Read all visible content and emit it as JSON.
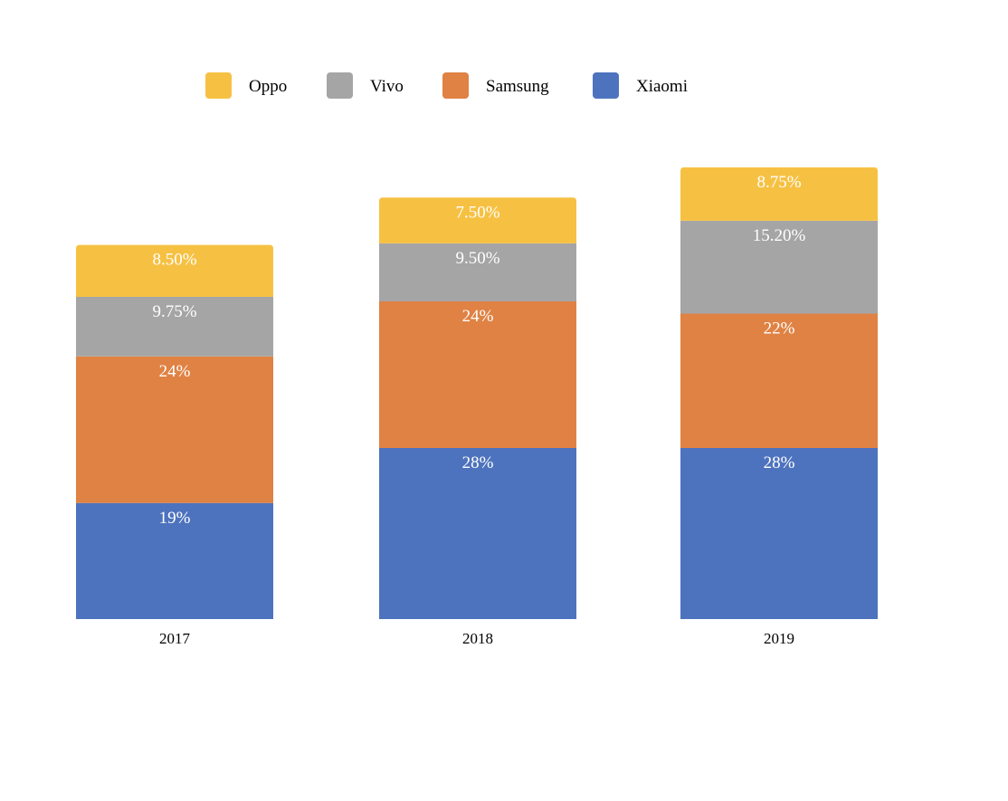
{
  "chart_data": {
    "type": "bar",
    "stacked": true,
    "categories": [
      "2017",
      "2018",
      "2019"
    ],
    "series": [
      {
        "name": "Xiaomi",
        "color": "#4e73be",
        "values": [
          19,
          28,
          28
        ],
        "labels": [
          "19%",
          "28%",
          "28%"
        ]
      },
      {
        "name": "Samsung",
        "color": "#df8244",
        "values": [
          24,
          24,
          22
        ],
        "labels": [
          "24%",
          "24%",
          "22%"
        ]
      },
      {
        "name": "Vivo",
        "color": "#a5a5a5",
        "values": [
          9.75,
          9.5,
          15.2
        ],
        "labels": [
          "9.75%",
          "9.50%",
          "15.20%"
        ]
      },
      {
        "name": "Oppo",
        "color": "#f6c143",
        "values": [
          8.5,
          7.5,
          8.75
        ],
        "labels": [
          "8.50%",
          "7.50%",
          "8.75%"
        ]
      }
    ],
    "legend": {
      "position": "top",
      "order": [
        "Oppo",
        "Vivo",
        "Samsung",
        "Xiaomi"
      ]
    },
    "y_axis_visible": false,
    "grid": false,
    "title": "",
    "xlabel": "",
    "ylabel": ""
  }
}
